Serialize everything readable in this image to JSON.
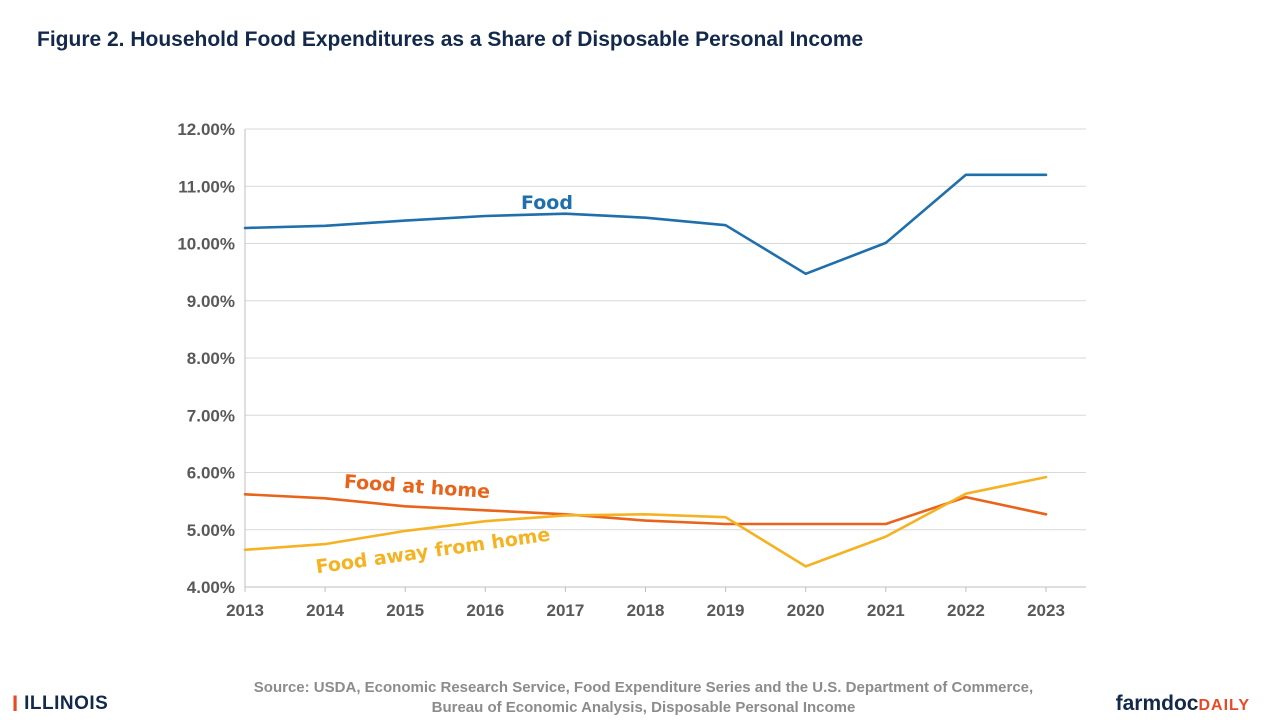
{
  "header": {
    "title": "Figure 2. Household Food Expenditures as a Share of Disposable Personal Income"
  },
  "source": {
    "line1": "Source: USDA, Economic Research Service, Food Expenditure Series and the U.S. Department of Commerce,",
    "line2": "Bureau of Economic Analysis, Disposable Personal Income"
  },
  "logos": {
    "illinois_mark": "I",
    "illinois_text": "ILLINOIS",
    "farmdoc_text": "farmdoc",
    "daily_text": "DAILY"
  },
  "chart_data": {
    "type": "line",
    "x": [
      "2013",
      "2014",
      "2015",
      "2016",
      "2017",
      "2018",
      "2019",
      "2020",
      "2021",
      "2022",
      "2023"
    ],
    "ylim": [
      4.0,
      12.0
    ],
    "yticks": [
      4,
      5,
      6,
      7,
      8,
      9,
      10,
      11,
      12
    ],
    "ytick_labels": [
      "4.00%",
      "5.00%",
      "6.00%",
      "7.00%",
      "8.00%",
      "9.00%",
      "10.00%",
      "11.00%",
      "12.00%"
    ],
    "grid": true,
    "series": [
      {
        "name": "Food",
        "color": "#1f6fac",
        "values": [
          10.27,
          10.31,
          10.4,
          10.48,
          10.52,
          10.45,
          10.32,
          9.47,
          10.01,
          11.2,
          11.2
        ]
      },
      {
        "name": "Food at home",
        "color": "#e8641b",
        "values": [
          5.62,
          5.55,
          5.41,
          5.34,
          5.27,
          5.16,
          5.1,
          5.1,
          5.1,
          5.57,
          5.27
        ]
      },
      {
        "name": "Food away from home",
        "color": "#f5b323",
        "values": [
          4.65,
          4.75,
          4.98,
          5.15,
          5.25,
          5.27,
          5.22,
          4.36,
          4.88,
          5.63,
          5.92
        ]
      }
    ]
  }
}
